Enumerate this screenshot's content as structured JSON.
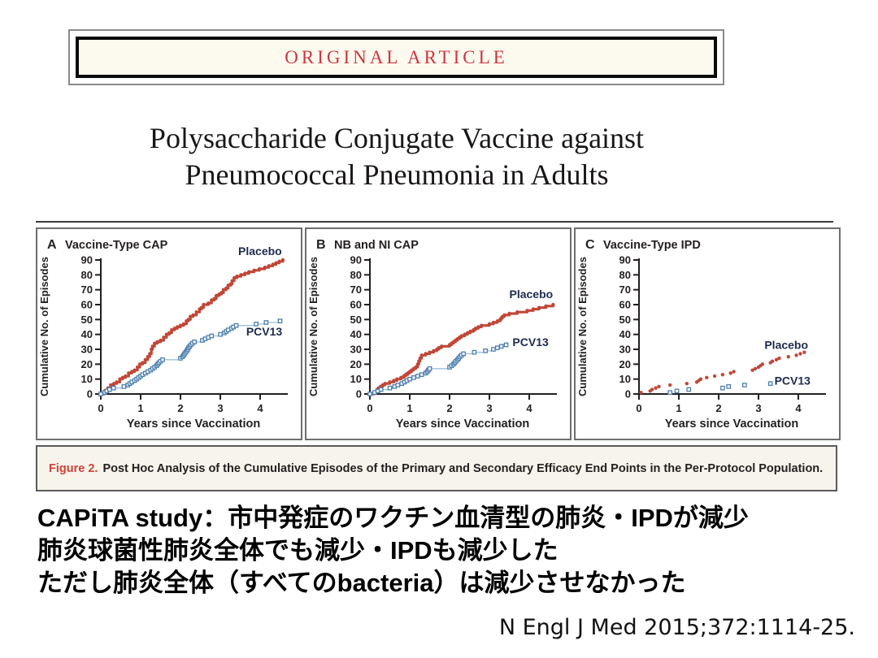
{
  "header_box": {
    "label": "ORIGINAL ARTICLE"
  },
  "title": {
    "line1": "Polysaccharide Conjugate Vaccine against",
    "line2": "Pneumococcal Pneumonia in Adults"
  },
  "figure": {
    "caption": {
      "prefix": "Figure 2.",
      "text": "Post Hoc Analysis of the Cumulative Episodes of the Primary and Secondary Efficacy End Points in the Per-Protocol Population."
    },
    "colors": {
      "placebo": "#c04737",
      "pcv13": "#4d7fae",
      "pcv13_line": "#9fbedd",
      "series_label": "#1f2b4d",
      "axis": "#231f20",
      "caption_red": "#d04238",
      "banner_red": "#ce3440"
    }
  },
  "chart_data": [
    {
      "type": "line",
      "panel": "A",
      "title": "Vaccine-Type CAP",
      "xlabel": "Years since Vaccination",
      "ylabel": "Cumulative No. of Episodes",
      "xlim": [
        0,
        4.6
      ],
      "ylim": [
        0,
        90
      ],
      "xticks": [
        0,
        1,
        2,
        3,
        4
      ],
      "yticks": [
        0,
        10,
        20,
        30,
        40,
        50,
        60,
        70,
        80,
        90
      ],
      "series": [
        {
          "name": "Placebo",
          "style": "step-dots",
          "label_pos": [
            3.45,
            96
          ],
          "points": [
            [
              0,
              0
            ],
            [
              0.1,
              2
            ],
            [
              0.18,
              4
            ],
            [
              0.25,
              6
            ],
            [
              0.33,
              7
            ],
            [
              0.4,
              8
            ],
            [
              0.48,
              10
            ],
            [
              0.55,
              11
            ],
            [
              0.62,
              12
            ],
            [
              0.7,
              14
            ],
            [
              0.78,
              15
            ],
            [
              0.85,
              16
            ],
            [
              0.92,
              18
            ],
            [
              0.98,
              20
            ],
            [
              1.05,
              21
            ],
            [
              1.12,
              23
            ],
            [
              1.18,
              25
            ],
            [
              1.23,
              27
            ],
            [
              1.27,
              30
            ],
            [
              1.3,
              32
            ],
            [
              1.35,
              34
            ],
            [
              1.42,
              35
            ],
            [
              1.5,
              36
            ],
            [
              1.58,
              38
            ],
            [
              1.65,
              40
            ],
            [
              1.72,
              41
            ],
            [
              1.78,
              43
            ],
            [
              1.85,
              44
            ],
            [
              1.92,
              45
            ],
            [
              2.0,
              46
            ],
            [
              2.08,
              47
            ],
            [
              2.15,
              49
            ],
            [
              2.2,
              50
            ],
            [
              2.25,
              52
            ],
            [
              2.32,
              53
            ],
            [
              2.4,
              55
            ],
            [
              2.48,
              57
            ],
            [
              2.53,
              58
            ],
            [
              2.58,
              60
            ],
            [
              2.7,
              61
            ],
            [
              2.78,
              63
            ],
            [
              2.85,
              64
            ],
            [
              2.9,
              66
            ],
            [
              2.97,
              67
            ],
            [
              3.03,
              68
            ],
            [
              3.08,
              70
            ],
            [
              3.15,
              71
            ],
            [
              3.2,
              73
            ],
            [
              3.27,
              74
            ],
            [
              3.3,
              76
            ],
            [
              3.35,
              78
            ],
            [
              3.42,
              79
            ],
            [
              3.52,
              80
            ],
            [
              3.62,
              81
            ],
            [
              3.72,
              82
            ],
            [
              3.85,
              83
            ],
            [
              3.98,
              84
            ],
            [
              4.12,
              85
            ],
            [
              4.22,
              86
            ],
            [
              4.32,
              87
            ],
            [
              4.4,
              88
            ],
            [
              4.48,
              89
            ],
            [
              4.57,
              90
            ]
          ]
        },
        {
          "name": "PCV13",
          "style": "step-squares",
          "label_pos": [
            3.65,
            42
          ],
          "points": [
            [
              0,
              0
            ],
            [
              0.1,
              1
            ],
            [
              0.15,
              2
            ],
            [
              0.22,
              3
            ],
            [
              0.32,
              4
            ],
            [
              0.58,
              5
            ],
            [
              0.68,
              6
            ],
            [
              0.73,
              7
            ],
            [
              0.78,
              8
            ],
            [
              0.85,
              9
            ],
            [
              0.9,
              10
            ],
            [
              0.95,
              11
            ],
            [
              1.0,
              12
            ],
            [
              1.05,
              13
            ],
            [
              1.12,
              14
            ],
            [
              1.18,
              15
            ],
            [
              1.25,
              16
            ],
            [
              1.3,
              17
            ],
            [
              1.35,
              18
            ],
            [
              1.4,
              19
            ],
            [
              1.43,
              20
            ],
            [
              1.46,
              21
            ],
            [
              1.5,
              22
            ],
            [
              1.55,
              23
            ],
            [
              2.0,
              24
            ],
            [
              2.05,
              25
            ],
            [
              2.08,
              26
            ],
            [
              2.1,
              27
            ],
            [
              2.13,
              28
            ],
            [
              2.16,
              29
            ],
            [
              2.18,
              30
            ],
            [
              2.2,
              31
            ],
            [
              2.23,
              32
            ],
            [
              2.26,
              33
            ],
            [
              2.3,
              34
            ],
            [
              2.35,
              35
            ],
            [
              2.55,
              36
            ],
            [
              2.62,
              37
            ],
            [
              2.7,
              38
            ],
            [
              2.78,
              39
            ],
            [
              3.0,
              40
            ],
            [
              3.1,
              41
            ],
            [
              3.15,
              42
            ],
            [
              3.2,
              43
            ],
            [
              3.28,
              44
            ],
            [
              3.33,
              45
            ],
            [
              3.4,
              46
            ],
            [
              3.9,
              47
            ],
            [
              4.15,
              48
            ],
            [
              4.5,
              49
            ]
          ]
        }
      ]
    },
    {
      "type": "line",
      "panel": "B",
      "title": "NB and NI CAP",
      "xlabel": "Years since Vaccination",
      "ylabel": "Cumulative No. of Episodes",
      "xlim": [
        0,
        4.6
      ],
      "ylim": [
        0,
        90
      ],
      "xticks": [
        0,
        1,
        2,
        3,
        4
      ],
      "yticks": [
        0,
        10,
        20,
        30,
        40,
        50,
        60,
        70,
        80,
        90
      ],
      "series": [
        {
          "name": "Placebo",
          "style": "step-dots",
          "label_pos": [
            3.5,
            67
          ],
          "points": [
            [
              0,
              0
            ],
            [
              0.12,
              1
            ],
            [
              0.18,
              3
            ],
            [
              0.22,
              4
            ],
            [
              0.27,
              5
            ],
            [
              0.32,
              6
            ],
            [
              0.38,
              7
            ],
            [
              0.5,
              8
            ],
            [
              0.6,
              9
            ],
            [
              0.68,
              10
            ],
            [
              0.78,
              11
            ],
            [
              0.85,
              12
            ],
            [
              0.9,
              13
            ],
            [
              0.95,
              14
            ],
            [
              1.0,
              15
            ],
            [
              1.05,
              16
            ],
            [
              1.1,
              17
            ],
            [
              1.15,
              18
            ],
            [
              1.2,
              20
            ],
            [
              1.23,
              22
            ],
            [
              1.26,
              24
            ],
            [
              1.3,
              26
            ],
            [
              1.4,
              27
            ],
            [
              1.5,
              28
            ],
            [
              1.6,
              29
            ],
            [
              1.68,
              30
            ],
            [
              1.73,
              31
            ],
            [
              1.8,
              32
            ],
            [
              2.0,
              33
            ],
            [
              2.05,
              34
            ],
            [
              2.1,
              35
            ],
            [
              2.15,
              36
            ],
            [
              2.2,
              37
            ],
            [
              2.25,
              38
            ],
            [
              2.3,
              39
            ],
            [
              2.38,
              40
            ],
            [
              2.45,
              41
            ],
            [
              2.52,
              42
            ],
            [
              2.6,
              43
            ],
            [
              2.65,
              44
            ],
            [
              2.72,
              45
            ],
            [
              2.8,
              46
            ],
            [
              3.0,
              47
            ],
            [
              3.1,
              48
            ],
            [
              3.2,
              49
            ],
            [
              3.27,
              50
            ],
            [
              3.3,
              51
            ],
            [
              3.33,
              52
            ],
            [
              3.38,
              53
            ],
            [
              3.5,
              54
            ],
            [
              3.7,
              55
            ],
            [
              3.95,
              56
            ],
            [
              4.1,
              57
            ],
            [
              4.25,
              58
            ],
            [
              4.42,
              59
            ],
            [
              4.6,
              60
            ]
          ]
        },
        {
          "name": "PCV13",
          "style": "step-squares",
          "label_pos": [
            3.58,
            35
          ],
          "points": [
            [
              0,
              0
            ],
            [
              0.12,
              1
            ],
            [
              0.2,
              2
            ],
            [
              0.28,
              3
            ],
            [
              0.5,
              4
            ],
            [
              0.62,
              5
            ],
            [
              0.7,
              6
            ],
            [
              0.8,
              7
            ],
            [
              0.87,
              8
            ],
            [
              0.93,
              9
            ],
            [
              1.0,
              10
            ],
            [
              1.1,
              11
            ],
            [
              1.2,
              12
            ],
            [
              1.3,
              13
            ],
            [
              1.4,
              14
            ],
            [
              1.44,
              15
            ],
            [
              1.47,
              16
            ],
            [
              1.5,
              17
            ],
            [
              2.0,
              18
            ],
            [
              2.05,
              19
            ],
            [
              2.1,
              20
            ],
            [
              2.13,
              21
            ],
            [
              2.16,
              22
            ],
            [
              2.2,
              23
            ],
            [
              2.23,
              24
            ],
            [
              2.26,
              25
            ],
            [
              2.3,
              26
            ],
            [
              2.35,
              27
            ],
            [
              2.62,
              28
            ],
            [
              2.9,
              29
            ],
            [
              3.1,
              30
            ],
            [
              3.2,
              31
            ],
            [
              3.3,
              32
            ],
            [
              3.42,
              33
            ]
          ]
        }
      ]
    },
    {
      "type": "scatter",
      "panel": "C",
      "title": "Vaccine-Type IPD",
      "xlabel": "Years since Vaccination",
      "ylabel": "Cumulative No. of Episodes",
      "xlim": [
        0,
        4.6
      ],
      "ylim": [
        0,
        90
      ],
      "xticks": [
        0,
        1,
        2,
        3,
        4
      ],
      "yticks": [
        0,
        10,
        20,
        30,
        40,
        50,
        60,
        70,
        80,
        90
      ],
      "series": [
        {
          "name": "Placebo",
          "style": "dots",
          "label_pos": [
            3.15,
            33
          ],
          "points": [
            [
              0.05,
              1
            ],
            [
              0.28,
              2
            ],
            [
              0.33,
              3
            ],
            [
              0.42,
              4
            ],
            [
              0.5,
              5
            ],
            [
              0.78,
              6
            ],
            [
              1.2,
              7
            ],
            [
              1.45,
              8
            ],
            [
              1.5,
              9
            ],
            [
              1.55,
              10
            ],
            [
              1.7,
              11
            ],
            [
              1.9,
              12
            ],
            [
              2.1,
              13
            ],
            [
              2.3,
              14
            ],
            [
              2.38,
              15
            ],
            [
              2.85,
              16
            ],
            [
              2.92,
              17
            ],
            [
              3.0,
              18
            ],
            [
              3.05,
              19
            ],
            [
              3.1,
              20
            ],
            [
              3.3,
              21
            ],
            [
              3.35,
              22
            ],
            [
              3.45,
              23
            ],
            [
              3.52,
              24
            ],
            [
              3.75,
              25
            ],
            [
              3.95,
              26
            ],
            [
              4.05,
              27
            ],
            [
              4.15,
              28
            ]
          ]
        },
        {
          "name": "PCV13",
          "style": "squares",
          "label_pos": [
            3.4,
            9
          ],
          "points": [
            [
              0.78,
              1
            ],
            [
              0.95,
              2
            ],
            [
              1.25,
              3
            ],
            [
              2.1,
              4
            ],
            [
              2.25,
              5
            ],
            [
              2.65,
              6
            ],
            [
              3.3,
              7
            ]
          ]
        }
      ]
    }
  ],
  "commentary": {
    "lines": [
      "CAPiTA study：市中発症のワクチン血清型の肺炎・IPDが減少",
      "肺炎球菌性肺炎全体でも減少・IPDも減少した",
      "ただし肺炎全体（すべてのbacteria）は減少させなかった"
    ]
  },
  "citation": "N Engl J Med 2015;372:1114-25."
}
